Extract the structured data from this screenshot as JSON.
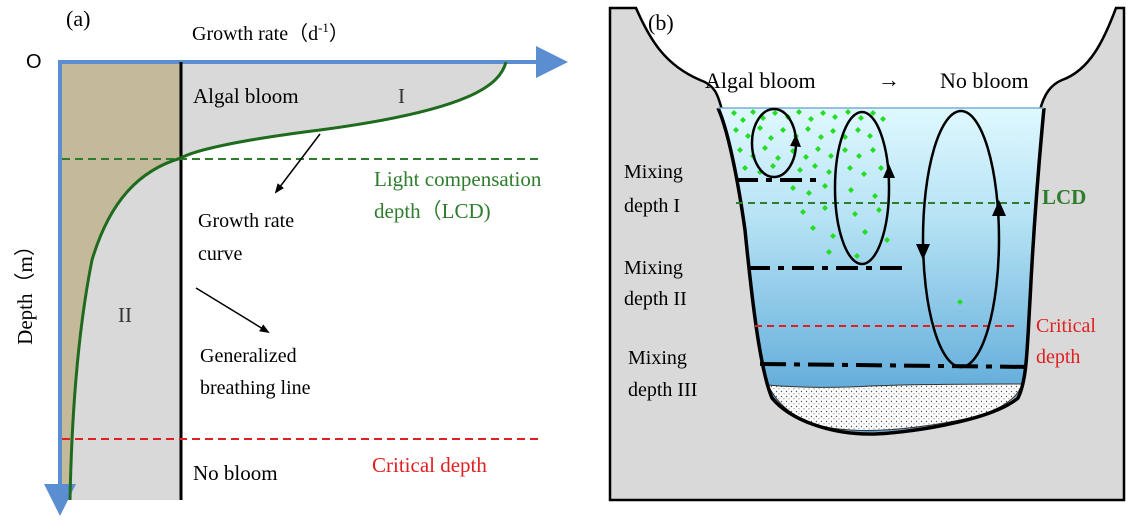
{
  "panel_a": {
    "label": "(a)",
    "origin_label": "O",
    "x_axis_label": "Growth rate",
    "x_axis_unit_open": "（d",
    "x_axis_unit_exp": "-1",
    "x_axis_unit_close": "）",
    "y_axis_label": "Depth（m）",
    "algal_bloom": "Algal bloom",
    "region_1": "I",
    "region_2": "II",
    "lcd_line1": "Light compensation",
    "lcd_line2": "depth（LCD)",
    "growth_curve_line1": "Growth rate",
    "growth_curve_line2": "curve",
    "breathing_line1": "Generalized",
    "breathing_line2": "breathing line",
    "critical_depth": "Critical depth",
    "no_bloom": "No bloom"
  },
  "panel_b": {
    "label": "(b)",
    "algal_bloom": "Algal bloom",
    "arrow": "→",
    "no_bloom": "No bloom",
    "mixing1_line1": "Mixing",
    "mixing1_line2": "depth I",
    "mixing2_line1": "Mixing",
    "mixing2_line2": "depth II",
    "mixing3_line1": "Mixing",
    "mixing3_line2": "depth III",
    "lcd": "LCD",
    "critical_line1": "Critical",
    "critical_line2": "depth"
  },
  "colors": {
    "axis_blue": "#5b8ed1",
    "tan": "#c4b99a",
    "light_gray": "#d9d9d9",
    "green_curve": "#1e6b1e",
    "green_text": "#2e7d2e",
    "red": "#e02020",
    "green_dots": "#22dd22"
  }
}
